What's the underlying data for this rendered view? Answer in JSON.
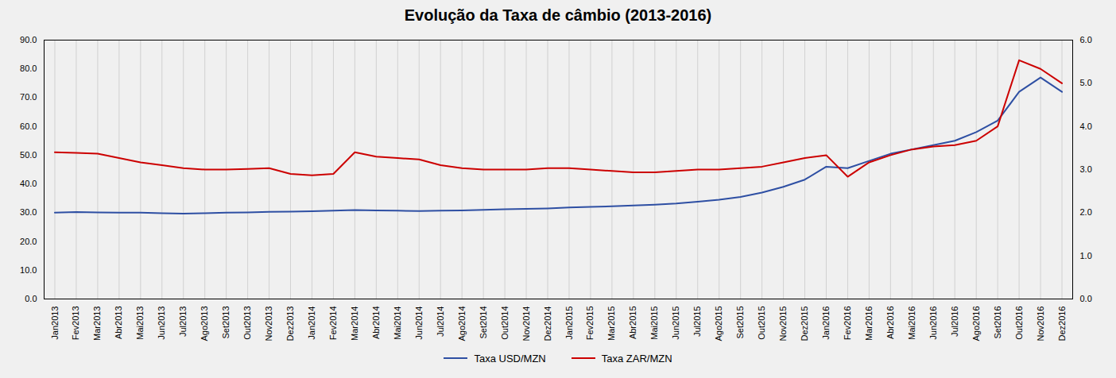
{
  "chart_data": {
    "type": "line",
    "title": "Evolução da Taxa de câmbio (2013-2016)",
    "categories": [
      "Jan2013",
      "Fev2013",
      "Mar2013",
      "Abr2013",
      "Mai2013",
      "Jun2013",
      "Jul2013",
      "Ago2013",
      "Set2013",
      "Out2013",
      "Nov2013",
      "Dez2013",
      "Jan2014",
      "Fev2014",
      "Mar2014",
      "Abr2014",
      "Mai2014",
      "Jun2014",
      "Jul2014",
      "Ago2014",
      "Set2014",
      "Out2014",
      "Nov2014",
      "Dez2014",
      "Jan2015",
      "Fev2015",
      "Mar2015",
      "Abr2015",
      "Mai2015",
      "Jun2015",
      "Jul2015",
      "Ago2015",
      "Set2015",
      "Out2015",
      "Nov2015",
      "Dez2015",
      "Jan2016",
      "Fev2016",
      "Mar2016",
      "Abr2016",
      "Mai2016",
      "Jun2016",
      "Jul2016",
      "Ago2016",
      "Set2016",
      "Out2016",
      "Nov2016",
      "Dez2016"
    ],
    "series": [
      {
        "name": "Taxa USD/MZN",
        "color": "#2e4fa3",
        "values": [
          30.0,
          30.2,
          30.1,
          30.0,
          30.0,
          29.8,
          29.7,
          29.8,
          30.0,
          30.1,
          30.3,
          30.4,
          30.5,
          30.7,
          30.9,
          30.8,
          30.7,
          30.6,
          30.7,
          30.8,
          31.0,
          31.2,
          31.3,
          31.5,
          31.8,
          32.0,
          32.2,
          32.5,
          32.8,
          33.2,
          33.8,
          34.5,
          35.5,
          37.0,
          39.0,
          41.5,
          46.0,
          45.5,
          48.0,
          50.5,
          52.0,
          53.5,
          55.0,
          58.0,
          62.0,
          72.0,
          77.0,
          72.0
        ]
      },
      {
        "name": "Taxa ZAR/MZN",
        "color": "#cc0000",
        "values": [
          51.0,
          50.8,
          50.5,
          49.0,
          47.5,
          46.5,
          45.5,
          45.0,
          45.0,
          45.2,
          45.5,
          43.5,
          43.0,
          43.5,
          51.0,
          49.5,
          49.0,
          48.5,
          46.5,
          45.5,
          45.0,
          45.0,
          45.0,
          45.5,
          45.5,
          45.0,
          44.5,
          44.0,
          44.0,
          44.5,
          45.0,
          45.0,
          45.5,
          46.0,
          47.5,
          49.0,
          50.0,
          42.5,
          47.5,
          50.0,
          52.0,
          53.0,
          53.5,
          55.0,
          60.0,
          83.0,
          80.0,
          75.0
        ]
      }
    ],
    "ylim": [
      0.0,
      90.0
    ],
    "yticks": [
      {
        "value": 0,
        "label": "0.0"
      },
      {
        "value": 10,
        "label": "10.0"
      },
      {
        "value": 20,
        "label": "20.0"
      },
      {
        "value": 30,
        "label": "30.0"
      },
      {
        "value": 40,
        "label": "40.0"
      },
      {
        "value": 50,
        "label": "50.0"
      },
      {
        "value": 60,
        "label": "60.0"
      },
      {
        "value": 70,
        "label": "70.0"
      },
      {
        "value": 80,
        "label": "80.0"
      },
      {
        "value": 90,
        "label": "90.0"
      }
    ],
    "y2lim": [
      0.0,
      6.0
    ],
    "y2ticks": [
      {
        "value": 0,
        "label": "0.0"
      },
      {
        "value": 1,
        "label": "1.0"
      },
      {
        "value": 2,
        "label": "2.0"
      },
      {
        "value": 3,
        "label": "3.0"
      },
      {
        "value": 4,
        "label": "4.0"
      },
      {
        "value": 5,
        "label": "5.0"
      },
      {
        "value": 6,
        "label": "6.0"
      }
    ],
    "grid": "x",
    "legend": "bottom"
  }
}
